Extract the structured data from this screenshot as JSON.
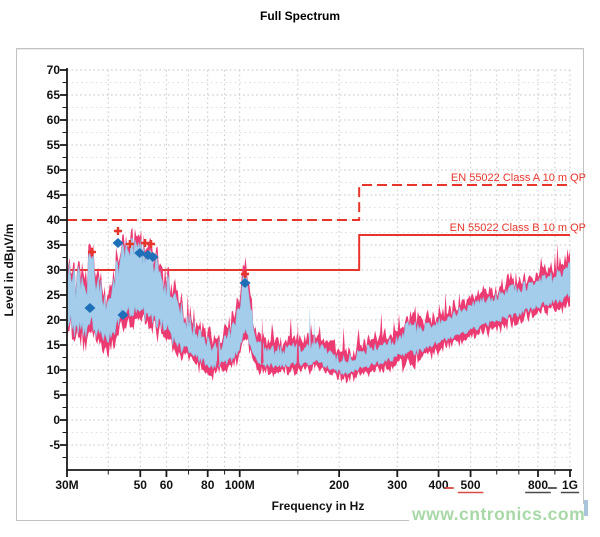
{
  "watermark": "www.cntronics.com",
  "chart_data": {
    "type": "area",
    "title": "Full Spectrum",
    "xlabel": "Frequency in Hz",
    "ylabel": "Level in dBµV/m",
    "x_scale": "log",
    "xlim_mhz": [
      30,
      1000
    ],
    "ylim": [
      -10,
      70
    ],
    "grid": "dotted",
    "y_tick_labels": [
      70,
      65,
      60,
      55,
      50,
      45,
      40,
      35,
      30,
      25,
      20,
      15,
      10,
      5,
      0,
      -5
    ],
    "x_ticks": [
      {
        "f": 30,
        "label": "30M"
      },
      {
        "f": 50,
        "label": "50"
      },
      {
        "f": 60,
        "label": "60"
      },
      {
        "f": 80,
        "label": "80"
      },
      {
        "f": 100,
        "label": "100M"
      },
      {
        "f": 200,
        "label": "200"
      },
      {
        "f": 300,
        "label": "300"
      },
      {
        "f": 400,
        "label": "400"
      },
      {
        "f": 500,
        "label": "500",
        "underline": "#d84a42",
        "dash_prefix": "#d84a42"
      },
      {
        "f": 800,
        "label": "800",
        "underline": "#4a4a4a"
      },
      {
        "f": 1000,
        "label": "1G",
        "underline": "#4a4a4a",
        "dash_prefix": "#4a4a4a"
      }
    ],
    "x_minor_ticks": [
      40,
      70,
      90,
      150,
      600,
      700,
      900
    ],
    "x_gridlines": [
      40,
      50,
      60,
      70,
      80,
      90,
      100,
      150,
      200,
      300,
      400,
      500,
      600,
      700,
      800,
      900,
      1000
    ],
    "limits": [
      {
        "name": "EN 55022 Class A 10 m QP",
        "style": "dashed",
        "color": "#e8352b",
        "segments": [
          [
            30,
            40
          ],
          [
            230,
            40
          ],
          [
            230,
            47
          ],
          [
            1000,
            47
          ]
        ]
      },
      {
        "name": "EN 55022 Class B 10 m QP",
        "style": "solid",
        "color": "#e8352b",
        "segments": [
          [
            30,
            30
          ],
          [
            230,
            30
          ],
          [
            230,
            37
          ],
          [
            1000,
            37
          ]
        ]
      }
    ],
    "series": [
      {
        "name": "peak-hold-trace",
        "color": "#ec3a72"
      },
      {
        "name": "average-trace",
        "color": "#a4cdeb"
      }
    ],
    "series_envelope": [
      [
        30,
        29,
        20
      ],
      [
        31,
        30,
        19
      ],
      [
        32,
        27,
        18
      ],
      [
        33,
        29,
        18
      ],
      [
        34,
        26,
        17
      ],
      [
        35,
        30,
        19
      ],
      [
        36,
        31,
        19
      ],
      [
        37,
        28,
        17.5
      ],
      [
        38,
        26,
        17
      ],
      [
        39,
        22,
        16.2
      ],
      [
        40,
        21,
        16
      ],
      [
        41,
        25,
        17
      ],
      [
        42,
        29,
        18.5
      ],
      [
        43,
        32,
        20
      ],
      [
        44,
        34,
        21
      ],
      [
        45,
        35,
        21.8
      ],
      [
        46,
        35.5,
        22
      ],
      [
        47,
        35,
        22
      ],
      [
        48,
        34,
        22
      ],
      [
        49,
        34.5,
        22
      ],
      [
        50,
        34,
        21.5
      ],
      [
        52,
        33,
        21
      ],
      [
        54,
        32.5,
        20.5
      ],
      [
        56,
        31,
        20
      ],
      [
        58,
        29,
        19
      ],
      [
        60,
        27,
        18.2
      ],
      [
        63,
        24,
        16
      ],
      [
        66,
        21.5,
        14.5
      ],
      [
        70,
        19.5,
        13.5
      ],
      [
        74,
        17.5,
        12.5
      ],
      [
        78,
        16,
        11.5
      ],
      [
        82,
        14.8,
        11
      ],
      [
        86,
        15,
        11
      ],
      [
        90,
        16,
        11.8
      ],
      [
        94,
        17.5,
        12.3
      ],
      [
        98,
        21,
        13.5
      ],
      [
        101,
        25,
        15.5
      ],
      [
        103,
        28,
        17.5
      ],
      [
        105,
        28.5,
        17.5
      ],
      [
        107,
        24,
        15
      ],
      [
        110,
        18.5,
        13
      ],
      [
        114,
        15.5,
        11.8
      ],
      [
        120,
        14.2,
        11
      ],
      [
        127,
        13.8,
        10.8
      ],
      [
        134,
        14,
        11
      ],
      [
        141,
        14.3,
        11
      ],
      [
        148,
        14.8,
        11.2
      ],
      [
        155,
        14.5,
        11
      ],
      [
        163,
        15,
        11.4
      ],
      [
        171,
        15,
        11.8
      ],
      [
        179,
        14.2,
        11
      ],
      [
        187,
        13.2,
        10.4
      ],
      [
        195,
        12.6,
        10
      ],
      [
        203,
        12.2,
        9.4
      ],
      [
        211,
        12,
        9.2
      ],
      [
        219,
        12.5,
        9.6
      ],
      [
        227,
        13,
        10
      ],
      [
        235,
        13.6,
        10.4
      ],
      [
        244,
        14.1,
        10.8
      ],
      [
        254,
        14.5,
        11
      ],
      [
        264,
        15,
        11.4
      ],
      [
        274,
        15.2,
        11.8
      ],
      [
        284,
        15.5,
        12
      ],
      [
        294,
        16,
        12.4
      ],
      [
        304,
        16.6,
        12.9
      ],
      [
        314,
        17.6,
        13.3
      ],
      [
        322,
        19.4,
        13.8
      ],
      [
        330,
        20,
        14
      ],
      [
        338,
        18.6,
        13.5
      ],
      [
        348,
        18.2,
        13.6
      ],
      [
        362,
        18.6,
        14.2
      ],
      [
        378,
        19.2,
        14.9
      ],
      [
        395,
        19.8,
        15.5
      ],
      [
        415,
        20.4,
        16
      ],
      [
        435,
        21,
        16.5
      ],
      [
        455,
        21.6,
        17
      ],
      [
        478,
        22.2,
        17.6
      ],
      [
        500,
        22.8,
        18
      ],
      [
        525,
        23.3,
        18.5
      ],
      [
        552,
        23.8,
        19
      ],
      [
        580,
        24.3,
        19.5
      ],
      [
        610,
        24.9,
        20
      ],
      [
        640,
        25.4,
        20.5
      ],
      [
        672,
        26,
        20.9
      ],
      [
        705,
        26.5,
        21.3
      ],
      [
        740,
        27,
        21.8
      ],
      [
        775,
        27.3,
        22.3
      ],
      [
        810,
        27.7,
        22.8
      ],
      [
        845,
        28.1,
        23.2
      ],
      [
        880,
        28.5,
        23.6
      ],
      [
        915,
        29,
        23.9
      ],
      [
        950,
        29.5,
        24.3
      ],
      [
        980,
        30.2,
        24.8
      ],
      [
        1000,
        31.5,
        25.2
      ]
    ],
    "jitter_amp": [
      [
        30,
        3.6
      ],
      [
        44,
        2.8
      ],
      [
        50,
        2.6
      ],
      [
        58,
        2.8
      ],
      [
        66,
        2.4
      ],
      [
        76,
        1.5
      ],
      [
        90,
        1.5
      ],
      [
        100,
        1.8
      ],
      [
        108,
        1.6
      ],
      [
        118,
        1.1
      ],
      [
        200,
        1.0
      ],
      [
        300,
        1.1
      ],
      [
        330,
        1.5
      ],
      [
        360,
        1.0
      ],
      [
        500,
        1.1
      ],
      [
        1000,
        1.3
      ]
    ],
    "pink_below_extra": [
      [
        30,
        1.8
      ],
      [
        58,
        1.8
      ],
      [
        72,
        0.7
      ],
      [
        150,
        0.6
      ],
      [
        290,
        0.7
      ],
      [
        315,
        3.2
      ],
      [
        333,
        3.0
      ],
      [
        355,
        0.8
      ],
      [
        600,
        0.9
      ],
      [
        1000,
        1.1
      ]
    ],
    "spikes": [
      {
        "f": 86,
        "top": 17.5,
        "color": "#ec3a72"
      },
      {
        "f": 117,
        "top": 20.5,
        "color": "#ec3a72"
      },
      {
        "f": 150,
        "top": 19.5,
        "color": "#ec3a72"
      },
      {
        "f": 163,
        "top": 23.2,
        "color": "#a4cdeb"
      },
      {
        "f": 168,
        "top": 20.3,
        "color": "#a4cdeb"
      }
    ],
    "markers": {
      "plus": {
        "color": "#e8352b",
        "points": [
          [
            35.7,
            33.6
          ],
          [
            42.8,
            37.8
          ],
          [
            46.5,
            35.2
          ],
          [
            51.7,
            35.4
          ],
          [
            53.9,
            35.2
          ],
          [
            103.8,
            29.2
          ]
        ]
      },
      "diamond": {
        "color": "#1e6fb8",
        "points": [
          [
            35.2,
            22.4
          ],
          [
            42.8,
            35.4
          ],
          [
            44.3,
            21.0
          ],
          [
            49.8,
            33.4
          ],
          [
            52.7,
            33.0
          ],
          [
            54.6,
            32.6
          ],
          [
            103.8,
            27.4
          ]
        ]
      }
    }
  }
}
